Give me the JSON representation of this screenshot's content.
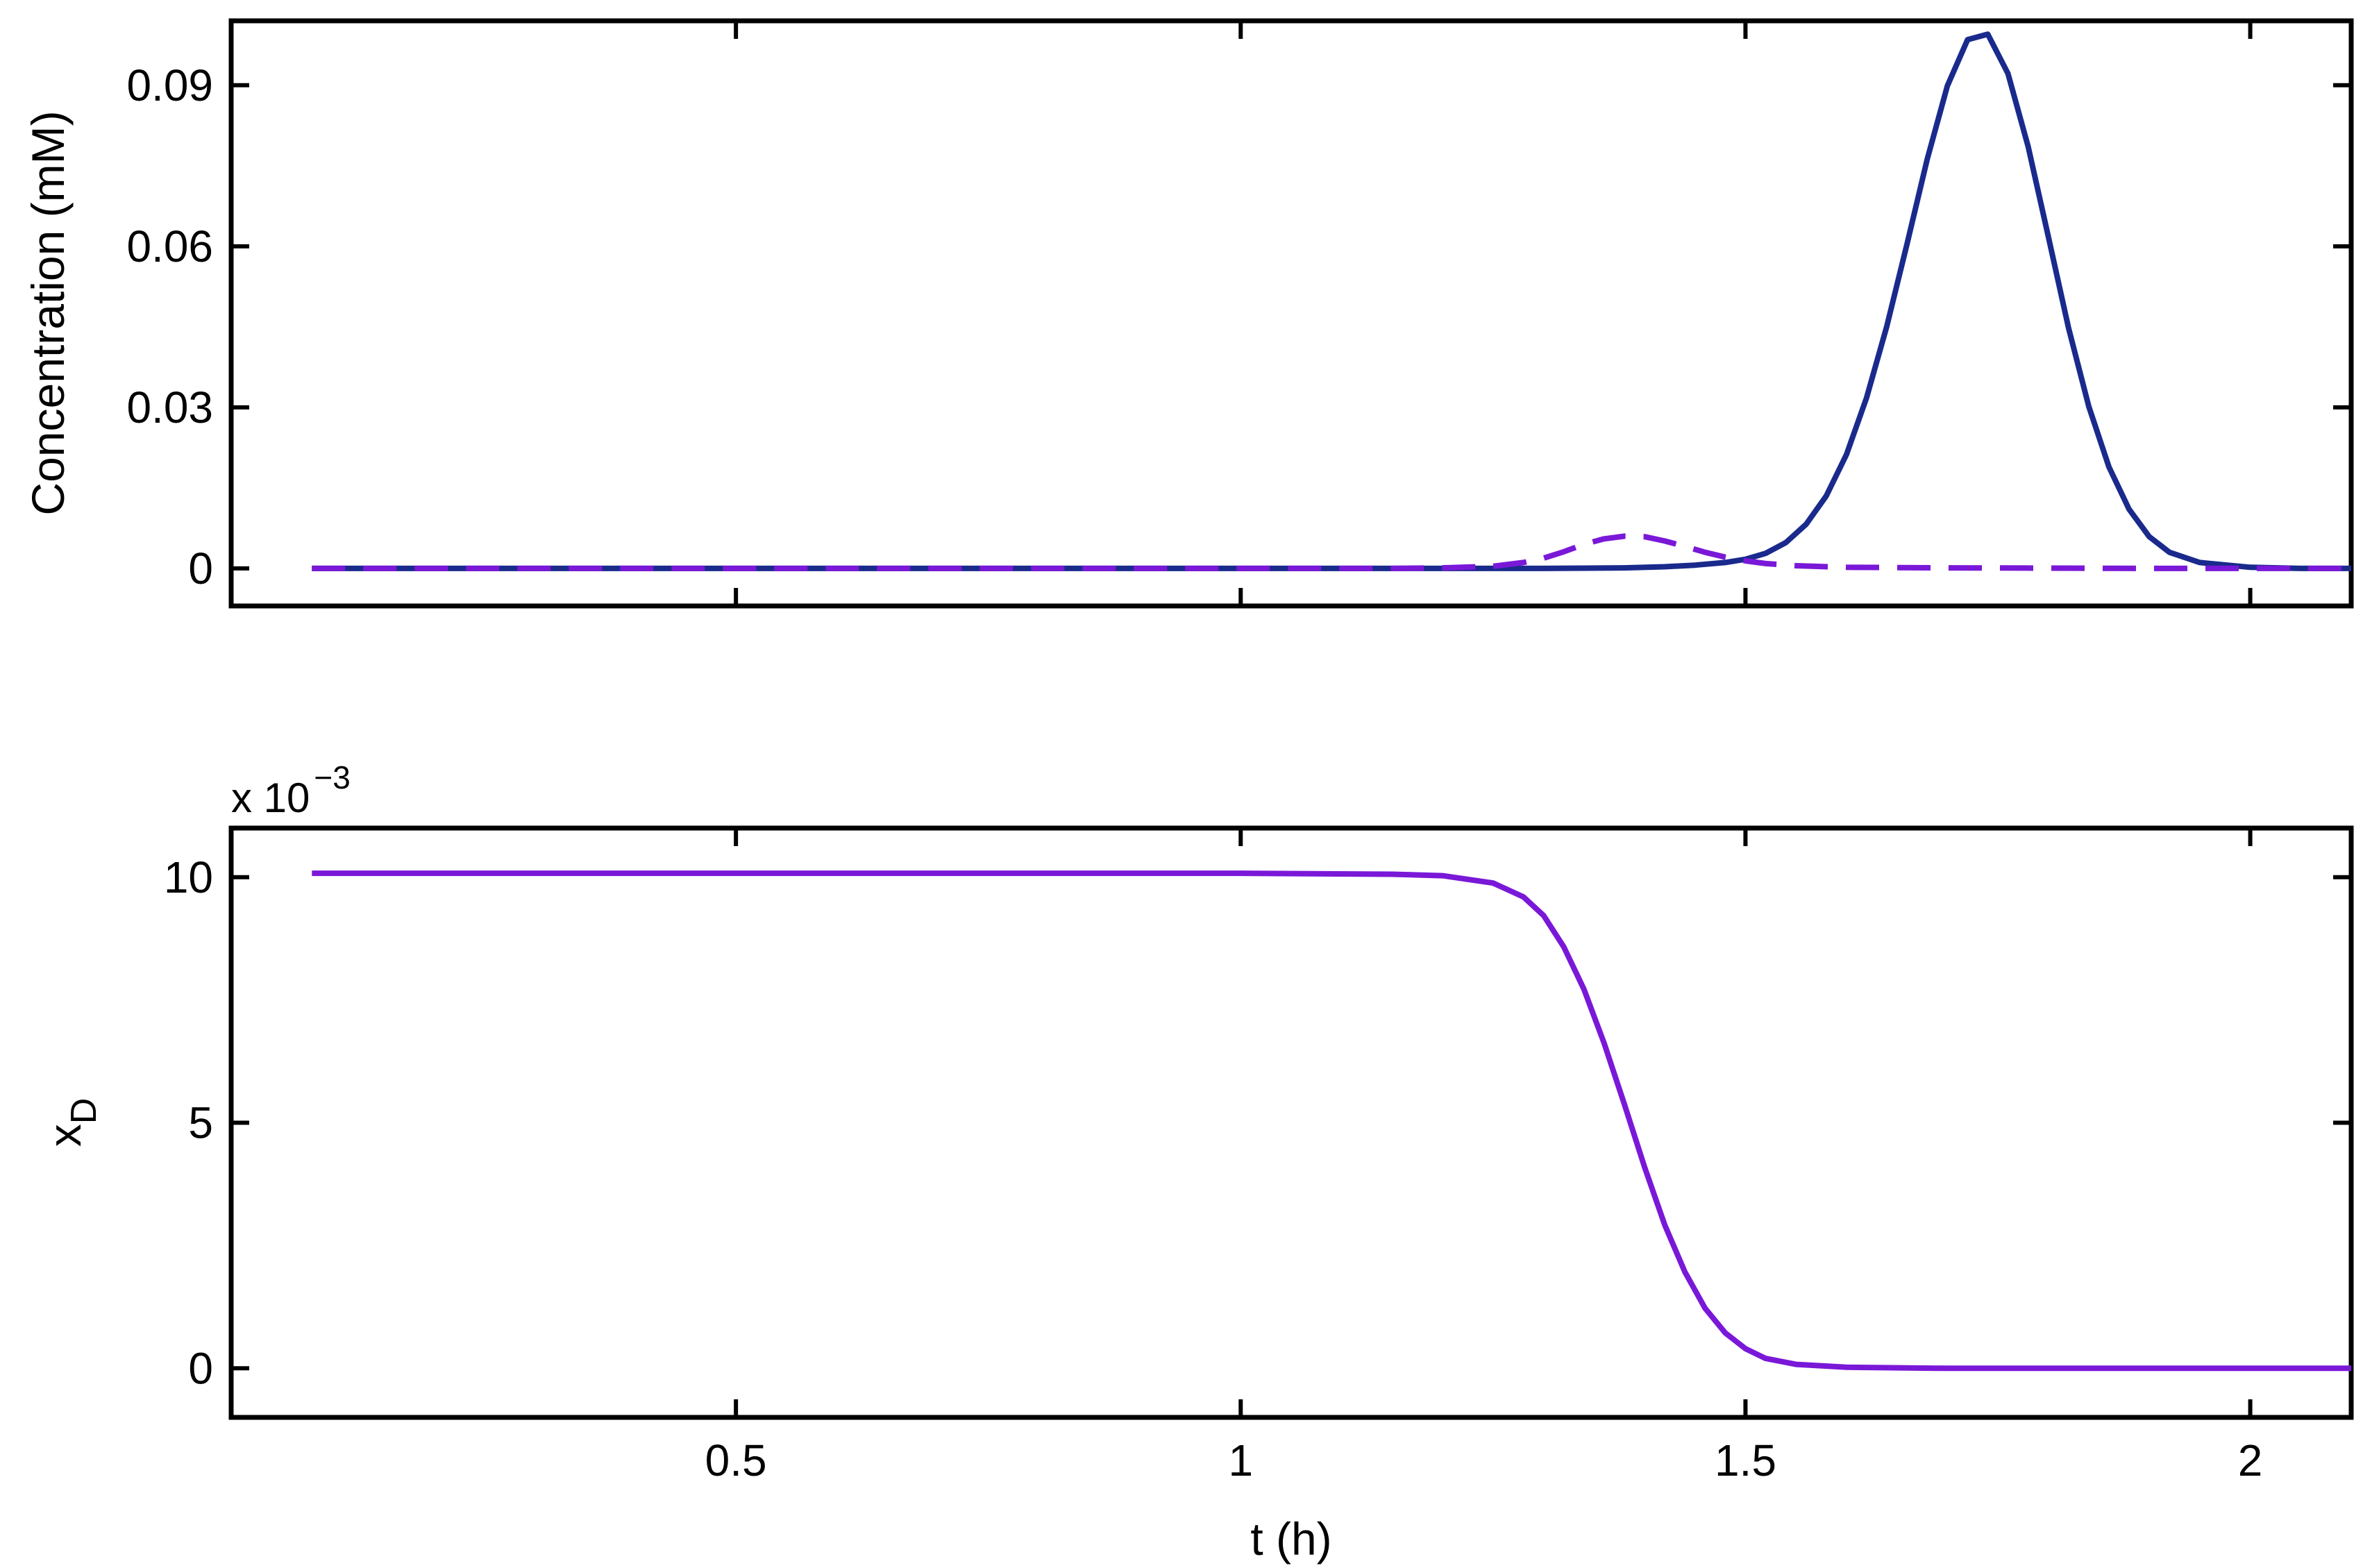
{
  "chart_data": [
    {
      "type": "line",
      "ylabel": "Concentration (mM)",
      "xlabel": "",
      "xlim": [
        0.0,
        2.1
      ],
      "ylim": [
        -0.007,
        0.102
      ],
      "xticks": [
        0.5,
        1,
        1.5,
        2
      ],
      "xtick_labels": [
        "0.5",
        "1",
        "1.5",
        "2"
      ],
      "yticks": [
        0,
        0.03,
        0.06,
        0.09
      ],
      "ytick_labels": [
        "0",
        "0.03",
        "0.06",
        "0.09"
      ],
      "grid": false,
      "series": [
        {
          "style": "solid",
          "color": "#1a2a8c",
          "x": [
            0.08,
            0.5,
            1.0,
            1.2,
            1.3,
            1.38,
            1.42,
            1.45,
            1.48,
            1.5,
            1.52,
            1.54,
            1.56,
            1.58,
            1.6,
            1.62,
            1.64,
            1.66,
            1.68,
            1.7,
            1.72,
            1.74,
            1.76,
            1.78,
            1.8,
            1.82,
            1.84,
            1.86,
            1.88,
            1.9,
            1.92,
            1.95,
            2.0,
            2.05,
            2.1
          ],
          "y": [
            0,
            0,
            0,
            0,
            0,
            0.0001,
            0.0003,
            0.0006,
            0.0011,
            0.0017,
            0.0028,
            0.0048,
            0.0082,
            0.0135,
            0.0212,
            0.0318,
            0.0451,
            0.0604,
            0.0762,
            0.0899,
            0.0985,
            0.0995,
            0.0922,
            0.0786,
            0.0618,
            0.0448,
            0.0302,
            0.0189,
            0.011,
            0.0059,
            0.003,
            0.0011,
            0.0002,
            0,
            0
          ]
        },
        {
          "style": "dashed",
          "color": "#7a18d8",
          "x": [
            0.08,
            0.5,
            1.0,
            1.15,
            1.2,
            1.25,
            1.28,
            1.3,
            1.32,
            1.34,
            1.36,
            1.38,
            1.4,
            1.42,
            1.44,
            1.46,
            1.48,
            1.5,
            1.52,
            1.55,
            1.6,
            1.7,
            1.9,
            2.1
          ],
          "y": [
            0,
            0,
            0,
            0,
            0.0001,
            0.0004,
            0.0011,
            0.0019,
            0.0031,
            0.0045,
            0.0055,
            0.006,
            0.0059,
            0.0051,
            0.0041,
            0.003,
            0.0021,
            0.0014,
            0.0009,
            0.0005,
            0.0002,
            0.0001,
            0,
            0
          ]
        }
      ]
    },
    {
      "type": "line",
      "ylabel": "x",
      "ylabel_subscript": "D",
      "xlabel": "t (h)",
      "exponent_label": "x 10",
      "exponent_power": "−3",
      "xlim": [
        0.0,
        2.1
      ],
      "ylim": [
        -1.0,
        11.0
      ],
      "xticks": [
        0.5,
        1,
        1.5,
        2
      ],
      "xtick_labels": [
        "0.5",
        "1",
        "1.5",
        "2"
      ],
      "yticks": [
        0,
        5,
        10
      ],
      "ytick_labels": [
        "0",
        "5",
        "10"
      ],
      "grid": false,
      "series": [
        {
          "style": "solid",
          "color": "#7a18d8",
          "x": [
            0.08,
            0.5,
            1.0,
            1.15,
            1.2,
            1.25,
            1.28,
            1.3,
            1.32,
            1.34,
            1.36,
            1.38,
            1.4,
            1.42,
            1.44,
            1.46,
            1.48,
            1.5,
            1.52,
            1.55,
            1.6,
            1.7,
            1.9,
            2.1
          ],
          "y": [
            10.08,
            10.08,
            10.08,
            10.06,
            10.03,
            9.88,
            9.6,
            9.22,
            8.58,
            7.72,
            6.62,
            5.38,
            4.1,
            2.92,
            1.96,
            1.22,
            0.72,
            0.4,
            0.2,
            0.08,
            0.02,
            0,
            0,
            0
          ]
        }
      ]
    }
  ]
}
